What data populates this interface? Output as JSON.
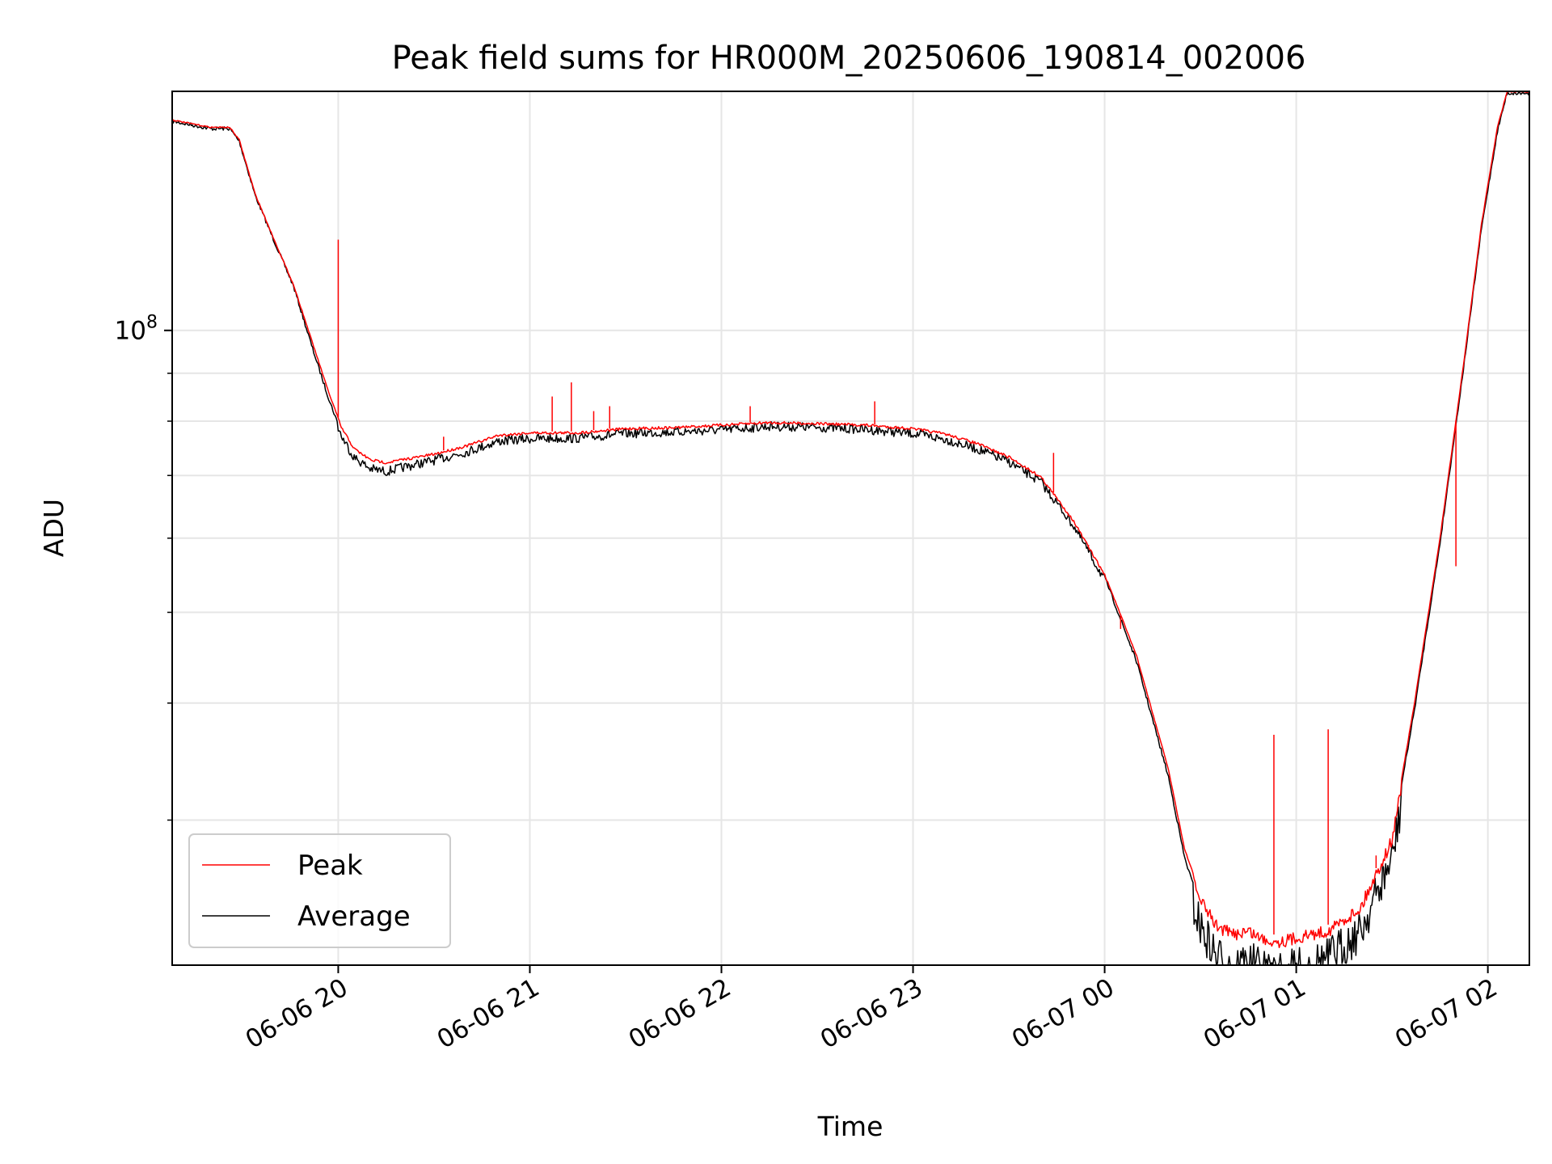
{
  "chart_data": {
    "type": "line",
    "title": "Peak field sums for HR000M_20250606_190814_002006",
    "xlabel": "Time",
    "ylabel": "ADU",
    "y_scale": "log",
    "grid": true,
    "legend_placement": "lower-left",
    "xlim": [
      "2025-06-06 19:08",
      "2025-06-07 02:13"
    ],
    "ylim": [
      21000000,
      180000000
    ],
    "x_ticks": [
      {
        "t": "2025-06-06 20:00",
        "label": "06-06 20"
      },
      {
        "t": "2025-06-06 21:00",
        "label": "06-06 21"
      },
      {
        "t": "2025-06-06 22:00",
        "label": "06-06 22"
      },
      {
        "t": "2025-06-06 23:00",
        "label": "06-06 23"
      },
      {
        "t": "2025-06-07 00:00",
        "label": "06-07 00"
      },
      {
        "t": "2025-06-07 01:00",
        "label": "06-07 01"
      },
      {
        "t": "2025-06-07 02:00",
        "label": "06-07 02"
      }
    ],
    "y_major_ticks": [
      {
        "v": 100000000,
        "base": "10",
        "exp": "8"
      }
    ],
    "y_minor_ticks": [
      30000000,
      40000000,
      50000000,
      60000000,
      70000000,
      80000000,
      90000000
    ],
    "series": [
      {
        "name": "Peak",
        "color": "#ff0000",
        "points": [
          [
            "2025-06-06 19:08",
            168000000
          ],
          [
            "2025-06-06 19:20",
            165000000
          ],
          [
            "2025-06-06 19:26",
            165000000
          ],
          [
            "2025-06-06 19:29",
            160000000
          ],
          [
            "2025-06-06 19:34",
            140000000
          ],
          [
            "2025-06-06 19:40",
            125000000
          ],
          [
            "2025-06-06 19:46",
            112000000
          ],
          [
            "2025-06-06 19:52",
            97000000
          ],
          [
            "2025-06-06 19:57",
            86000000
          ],
          [
            "2025-06-06 20:01",
            79000000
          ],
          [
            "2025-06-06 20:05",
            75000000
          ],
          [
            "2025-06-06 20:10",
            73000000
          ],
          [
            "2025-06-06 20:15",
            72500000
          ],
          [
            "2025-06-06 20:20",
            73000000
          ],
          [
            "2025-06-06 20:30",
            74000000
          ],
          [
            "2025-06-06 20:40",
            75500000
          ],
          [
            "2025-06-06 20:50",
            77500000
          ],
          [
            "2025-06-06 21:00",
            78000000
          ],
          [
            "2025-06-06 21:15",
            78000000
          ],
          [
            "2025-06-06 21:30",
            78800000
          ],
          [
            "2025-06-06 21:45",
            79000000
          ],
          [
            "2025-06-06 22:00",
            79500000
          ],
          [
            "2025-06-06 22:15",
            80000000
          ],
          [
            "2025-06-06 22:30",
            79800000
          ],
          [
            "2025-06-06 22:45",
            79500000
          ],
          [
            "2025-06-06 23:00",
            78800000
          ],
          [
            "2025-06-06 23:10",
            77800000
          ],
          [
            "2025-06-06 23:20",
            76000000
          ],
          [
            "2025-06-06 23:30",
            73500000
          ],
          [
            "2025-06-06 23:40",
            70000000
          ],
          [
            "2025-06-06 23:50",
            63000000
          ],
          [
            "2025-06-07 00:00",
            55000000
          ],
          [
            "2025-06-07 00:10",
            45000000
          ],
          [
            "2025-06-07 00:20",
            34000000
          ],
          [
            "2025-06-07 00:25",
            28000000
          ],
          [
            "2025-06-07 00:30",
            25000000
          ],
          [
            "2025-06-07 00:35",
            23500000
          ],
          [
            "2025-06-07 00:40",
            23000000
          ],
          [
            "2025-06-07 00:45",
            23200000
          ],
          [
            "2025-06-07 00:50",
            22700000
          ],
          [
            "2025-06-07 00:55",
            22600000
          ],
          [
            "2025-06-07 01:00",
            22800000
          ],
          [
            "2025-06-07 01:10",
            23200000
          ],
          [
            "2025-06-07 01:20",
            24500000
          ],
          [
            "2025-06-07 01:30",
            29000000
          ],
          [
            "2025-06-07 01:37",
            40000000
          ],
          [
            "2025-06-07 01:45",
            60000000
          ],
          [
            "2025-06-07 01:52",
            90000000
          ],
          [
            "2025-06-07 01:58",
            130000000
          ],
          [
            "2025-06-07 02:03",
            165000000
          ],
          [
            "2025-06-07 02:06",
            180000000
          ],
          [
            "2025-06-07 02:13",
            180000000
          ]
        ],
        "spikes": [
          [
            "2025-06-06 20:00",
            125000000
          ],
          [
            "2025-06-06 20:33",
            77000000
          ],
          [
            "2025-06-06 21:07",
            85000000
          ],
          [
            "2025-06-06 21:13",
            88000000
          ],
          [
            "2025-06-06 21:20",
            82000000
          ],
          [
            "2025-06-06 21:25",
            83000000
          ],
          [
            "2025-06-06 22:09",
            83000000
          ],
          [
            "2025-06-06 22:48",
            84000000
          ],
          [
            "2025-06-06 23:44",
            74000000
          ],
          [
            "2025-06-06 23:55",
            59000000
          ],
          [
            "2025-06-07 00:05",
            48000000
          ],
          [
            "2025-06-07 00:53",
            37000000
          ],
          [
            "2025-06-07 01:10",
            37500000
          ],
          [
            "2025-06-07 01:25",
            27500000
          ],
          [
            "2025-06-07 01:50",
            56000000
          ]
        ]
      },
      {
        "name": "Average",
        "color": "#000000",
        "points": [
          [
            "2025-06-06 19:08",
            168000000
          ],
          [
            "2025-06-06 19:20",
            165000000
          ],
          [
            "2025-06-06 19:26",
            165000000
          ],
          [
            "2025-06-06 19:29",
            160000000
          ],
          [
            "2025-06-06 19:34",
            140000000
          ],
          [
            "2025-06-06 19:40",
            125000000
          ],
          [
            "2025-06-06 19:46",
            112000000
          ],
          [
            "2025-06-06 19:52",
            96000000
          ],
          [
            "2025-06-06 19:57",
            85000000
          ],
          [
            "2025-06-06 20:01",
            78000000
          ],
          [
            "2025-06-06 20:05",
            74000000
          ],
          [
            "2025-06-06 20:10",
            72000000
          ],
          [
            "2025-06-06 20:15",
            71500000
          ],
          [
            "2025-06-06 20:20",
            72200000
          ],
          [
            "2025-06-06 20:30",
            73500000
          ],
          [
            "2025-06-06 20:40",
            75000000
          ],
          [
            "2025-06-06 20:50",
            77000000
          ],
          [
            "2025-06-06 21:00",
            77500000
          ],
          [
            "2025-06-06 21:15",
            77600000
          ],
          [
            "2025-06-06 21:30",
            78500000
          ],
          [
            "2025-06-06 21:45",
            78800000
          ],
          [
            "2025-06-06 22:00",
            79200000
          ],
          [
            "2025-06-06 22:15",
            79900000
          ],
          [
            "2025-06-06 22:30",
            79700000
          ],
          [
            "2025-06-06 22:45",
            79300000
          ],
          [
            "2025-06-06 23:00",
            78500000
          ],
          [
            "2025-06-06 23:10",
            77400000
          ],
          [
            "2025-06-06 23:20",
            75600000
          ],
          [
            "2025-06-06 23:30",
            73200000
          ],
          [
            "2025-06-06 23:40",
            69700000
          ],
          [
            "2025-06-06 23:50",
            62800000
          ],
          [
            "2025-06-07 00:00",
            54800000
          ],
          [
            "2025-06-07 00:10",
            44500000
          ],
          [
            "2025-06-07 00:20",
            33500000
          ],
          [
            "2025-06-07 00:25",
            27500000
          ],
          [
            "2025-06-07 00:30",
            24300000
          ],
          [
            "2025-06-07 00:35",
            22600000
          ],
          [
            "2025-06-07 00:40",
            22100000
          ],
          [
            "2025-06-07 00:45",
            22300000
          ],
          [
            "2025-06-07 00:50",
            21800000
          ],
          [
            "2025-06-07 00:55",
            21700000
          ],
          [
            "2025-06-07 01:00",
            21900000
          ],
          [
            "2025-06-07 01:10",
            22500000
          ],
          [
            "2025-06-07 01:20",
            24000000
          ],
          [
            "2025-06-07 01:30",
            28700000
          ],
          [
            "2025-06-07 01:37",
            39500000
          ],
          [
            "2025-06-07 01:45",
            59500000
          ],
          [
            "2025-06-07 01:52",
            89500000
          ],
          [
            "2025-06-07 01:58",
            129000000
          ],
          [
            "2025-06-07 02:03",
            164000000
          ],
          [
            "2025-06-07 02:06",
            180000000
          ],
          [
            "2025-06-07 02:13",
            180000000
          ]
        ]
      }
    ]
  }
}
